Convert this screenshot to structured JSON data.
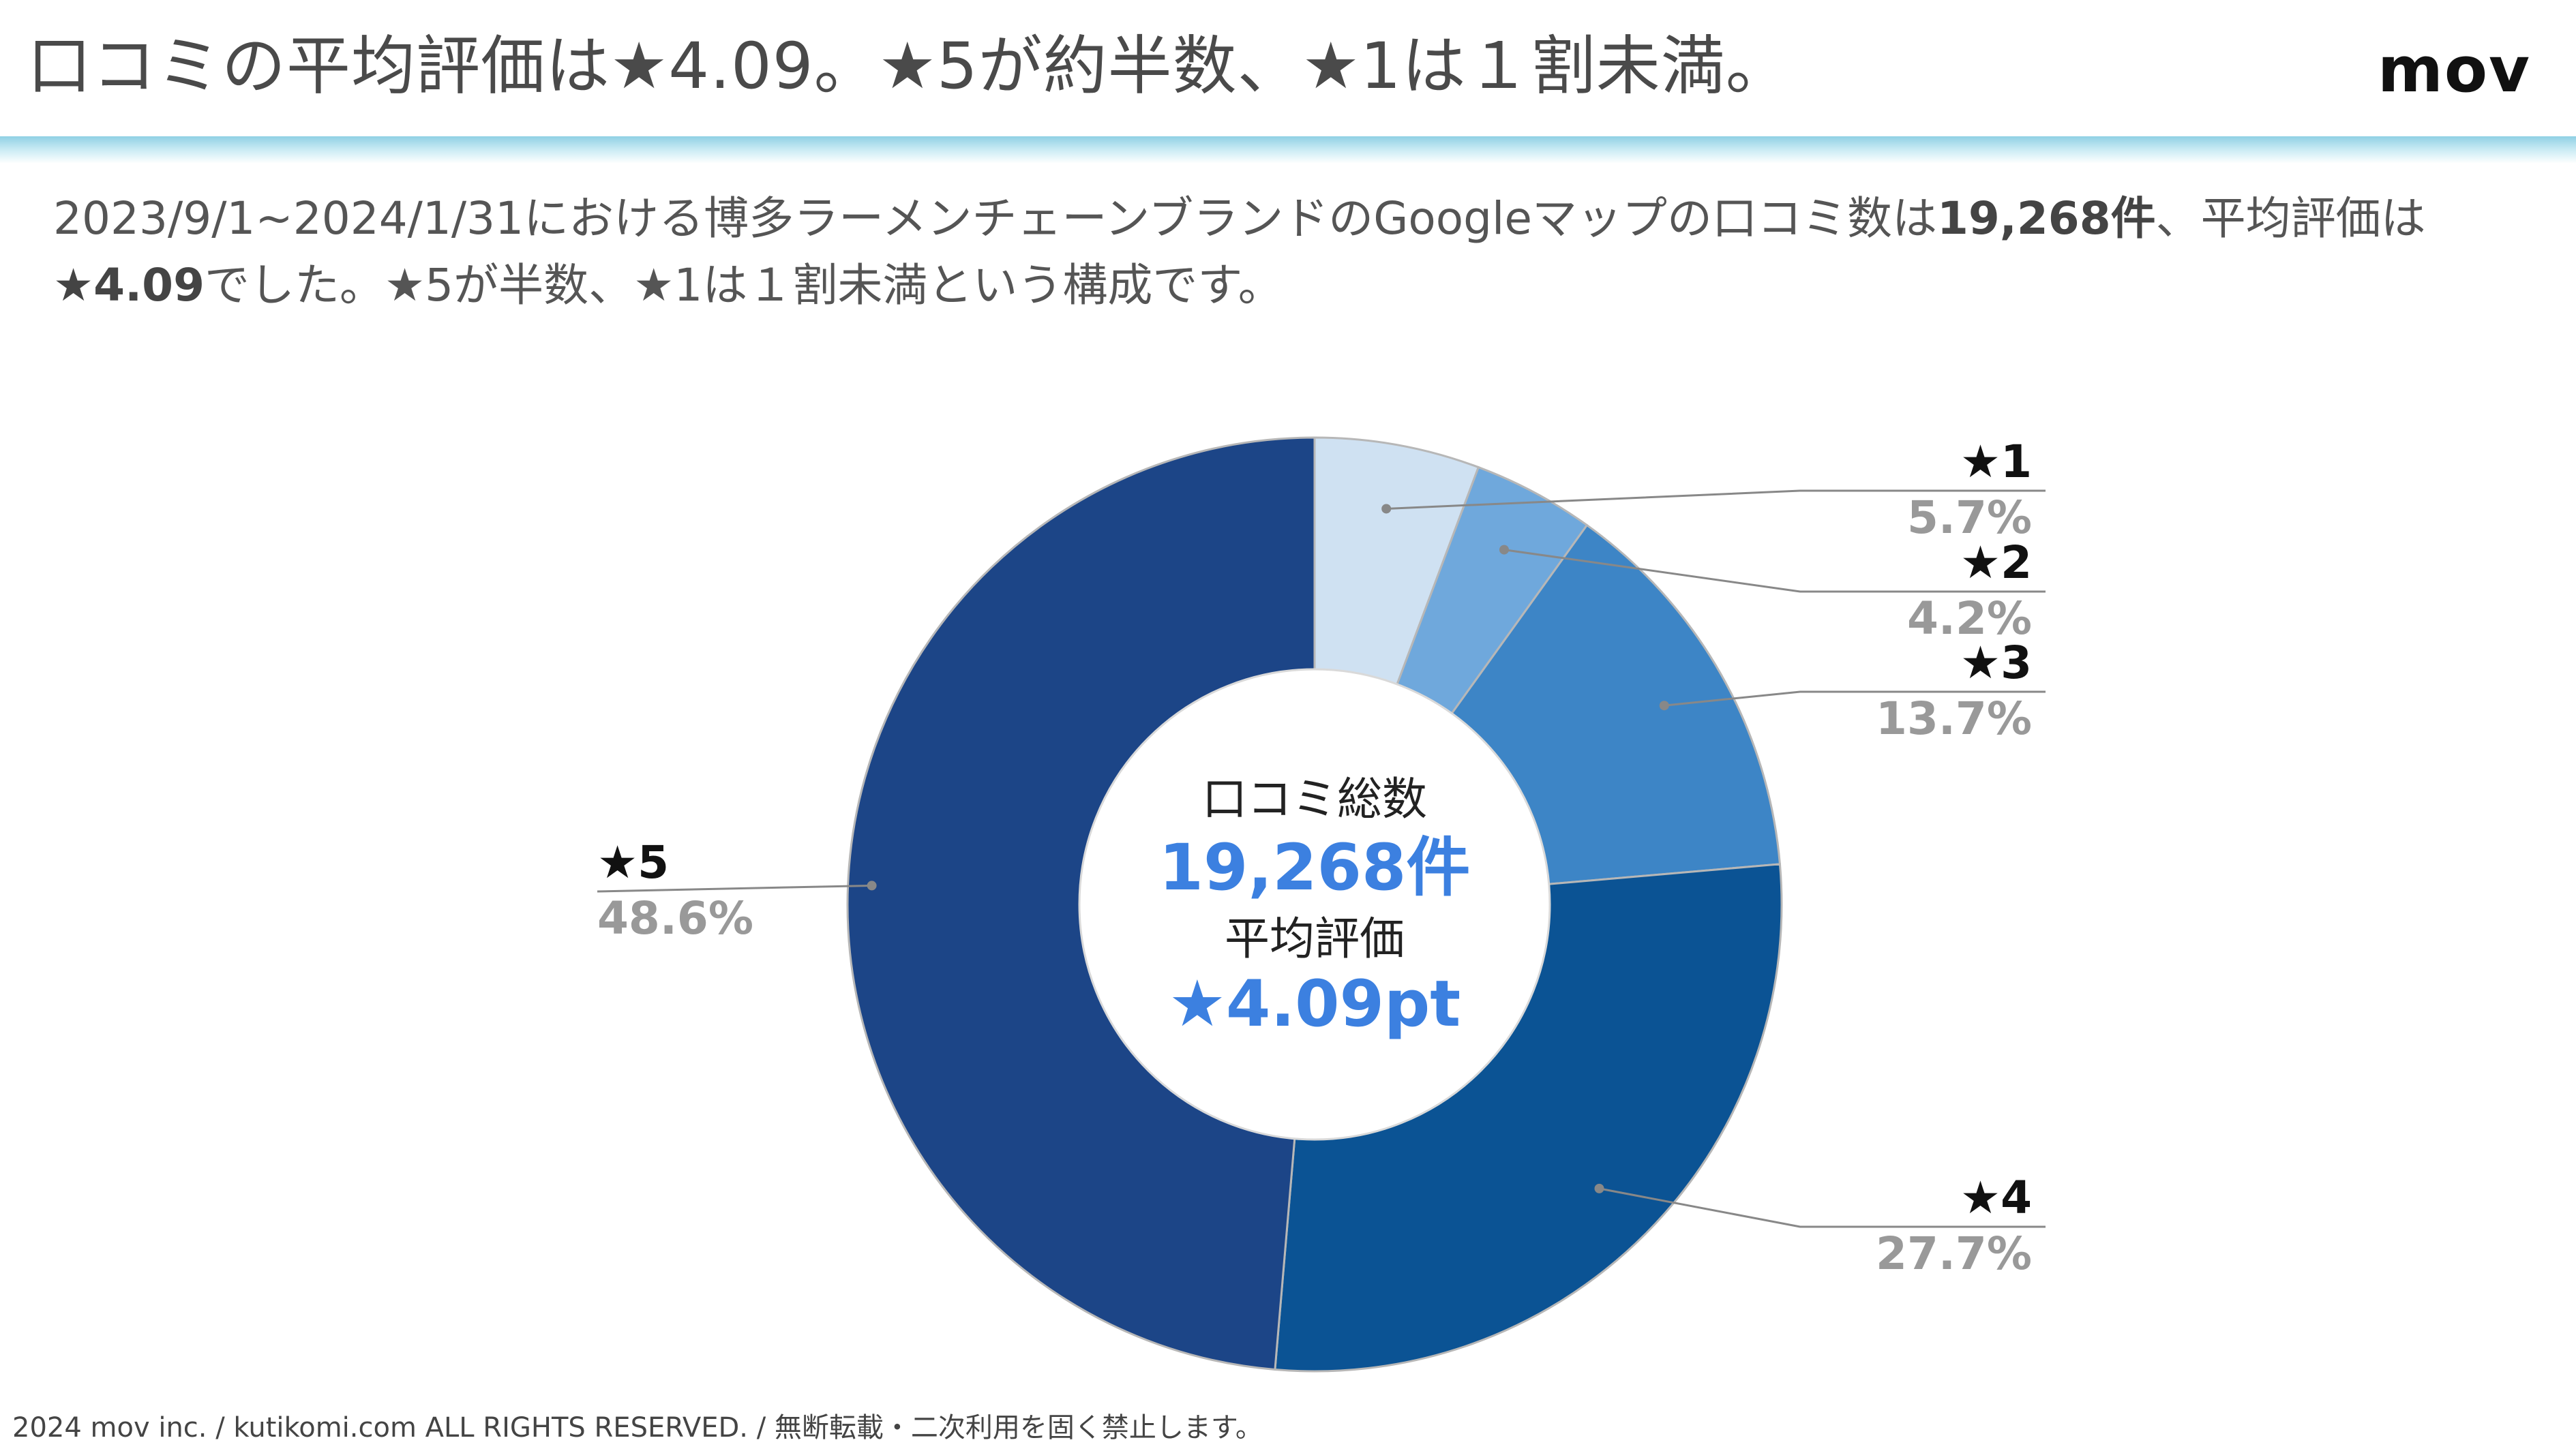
{
  "header": {
    "title": "口コミの平均評価は★4.09。★5が約半数、★1は１割未満。",
    "logo": "mov"
  },
  "description": {
    "part1": "2023/9/1~2024/1/31における博多ラーメンチェーンブランドのGoogleマップの口コミ数は",
    "count": "19,268件",
    "part2": "、平均評価は",
    "rating": "★4.09",
    "part3": "でした。★5が半数、★1は１割未満という構成です。"
  },
  "chart_data": {
    "type": "donut",
    "categories": [
      "★1",
      "★2",
      "★3",
      "★4",
      "★5"
    ],
    "values": [
      5.7,
      4.2,
      13.7,
      27.7,
      48.6
    ],
    "value_labels": [
      "5.7%",
      "4.2%",
      "13.7%",
      "27.7%",
      "48.6%"
    ],
    "colors": [
      "#cfe1f2",
      "#6fa8dc",
      "#3d85c6",
      "#0b5394",
      "#1c4587"
    ],
    "center": {
      "label1": "口コミ総数",
      "value1": "19,268件",
      "label2": "平均評価",
      "value2": "★4.09pt",
      "value_color": "#3c80e0"
    }
  },
  "footer": {
    "text": "2024 mov inc. / kutikomi.com ALL RIGHTS RESERVED. / 無断転載・二次利用を固く禁止します。"
  }
}
